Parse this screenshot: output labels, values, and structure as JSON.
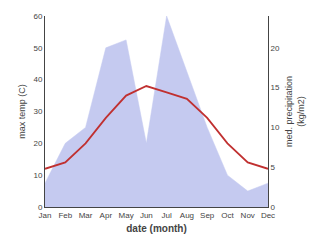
{
  "chart_data": {
    "type": "line",
    "xlabel": "date (month)",
    "ylabel": "max temp (C)",
    "y2label": "med. precipitation\n(kg/m2)",
    "categories": [
      "Jan",
      "Feb",
      "Mar",
      "Apr",
      "May",
      "Jun",
      "Jul",
      "Aug",
      "Sep",
      "Oct",
      "Nov",
      "Dec"
    ],
    "series": [
      {
        "type": "area",
        "color": "#c5caf0",
        "axis": "y2",
        "values": [
          3,
          8,
          10,
          20,
          21,
          8,
          24,
          17,
          10,
          4,
          2,
          3
        ]
      },
      {
        "type": "line",
        "color": "#c03030",
        "values": [
          12,
          14,
          20,
          28,
          35,
          38,
          36,
          34,
          28,
          20,
          14,
          12
        ]
      }
    ],
    "ylim": [
      0,
      60
    ],
    "yticks": [
      0,
      10,
      20,
      30,
      40,
      50,
      60
    ],
    "y2lim": [
      0,
      24
    ],
    "y2ticks": [
      0,
      5,
      10,
      15,
      20
    ],
    "grid": false
  }
}
